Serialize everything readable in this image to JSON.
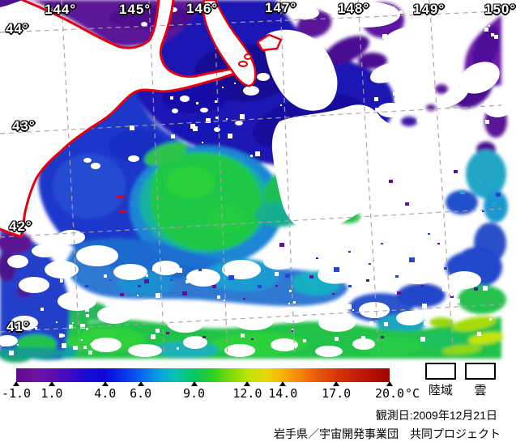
{
  "map": {
    "lon_labels": [
      "144°",
      "145°",
      "146°",
      "147°",
      "148°",
      "149°",
      "150°"
    ],
    "lat_labels": [
      "44°",
      "43°",
      "42°",
      "41°"
    ]
  },
  "colorbar": {
    "min": -1,
    "max": 20,
    "tick_values": [
      -1,
      1,
      4,
      6,
      9,
      12,
      14,
      17,
      20
    ],
    "tick_labels": [
      "-1.0",
      "1.0",
      "4.0",
      "6.0",
      "9.0",
      "12.0",
      "14.0",
      "17.0",
      "20.0"
    ],
    "unit_label": "°C",
    "gradient_stops": [
      [
        0,
        "#5a0b90"
      ],
      [
        4.8,
        "#6e12a4"
      ],
      [
        9.5,
        "#5e0eae"
      ],
      [
        14.3,
        "#3b0bc0"
      ],
      [
        19,
        "#1d09d0"
      ],
      [
        23.8,
        "#0909dc"
      ],
      [
        28.6,
        "#0a30ea"
      ],
      [
        33.3,
        "#0a62f0"
      ],
      [
        38.1,
        "#089ee2"
      ],
      [
        42.9,
        "#08c4b0"
      ],
      [
        47.6,
        "#09c562"
      ],
      [
        52.4,
        "#27d027"
      ],
      [
        57.1,
        "#77da08"
      ],
      [
        61.9,
        "#bbe409"
      ],
      [
        66.7,
        "#e6da08"
      ],
      [
        71.4,
        "#f9b108"
      ],
      [
        76.2,
        "#f28408"
      ],
      [
        81,
        "#e65708"
      ],
      [
        85.7,
        "#d93808"
      ],
      [
        90.5,
        "#c72108"
      ],
      [
        95.2,
        "#b41008"
      ],
      [
        100,
        "#9c0404"
      ]
    ]
  },
  "legend": {
    "land_label": "陸域",
    "cloud_label": "雲"
  },
  "footer": {
    "observation_date": "観測日:2009年12月21日",
    "credit": "岩手県／宇宙開発事業団　共同プロジェクト"
  },
  "map_colors": {
    "coastline_red": "#e8000e",
    "grid_gray": "#aaa2a6",
    "cloud_white": "#ffffff",
    "land_white": "#ffffff",
    "cold_purple": "#5c1498",
    "navy_blue": "#1a13b4",
    "royal_blue": "#1c39cb",
    "green": "#1fc844",
    "teal": "#16b2a0",
    "yellow_green": "#a6dc0e"
  }
}
